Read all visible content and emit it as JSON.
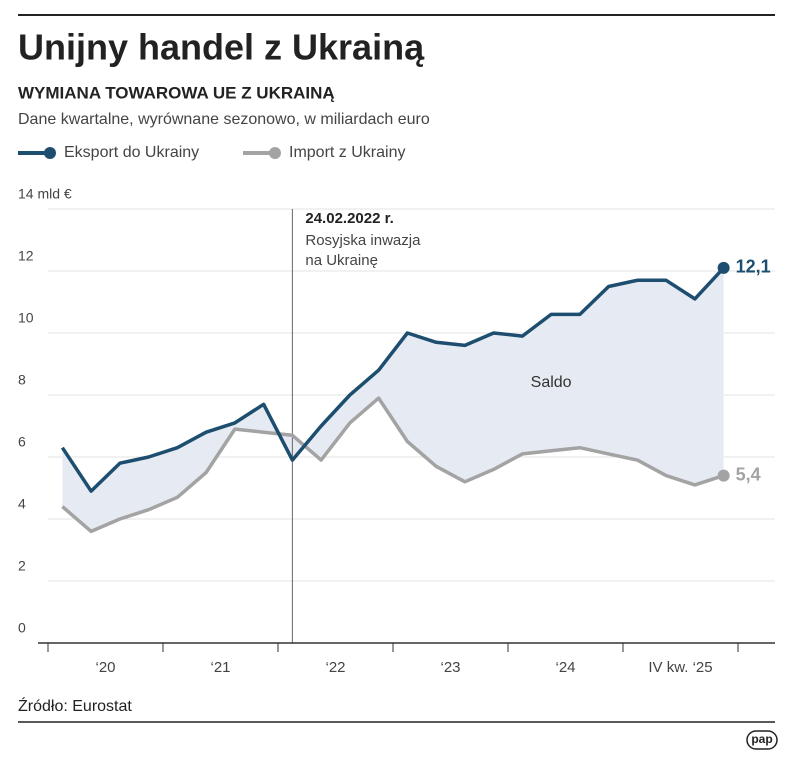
{
  "chart_data": {
    "type": "line",
    "title": "Unijny handel z Ukrainą",
    "subtitle": "WYMIANA TOWAROWA UE Z UKRAINĄ",
    "description": "Dane kwartalne, wyrównane sezonowo, w miliardach euro",
    "x": [
      2020.125,
      2020.375,
      2020.625,
      2020.875,
      2021.125,
      2021.375,
      2021.625,
      2021.875,
      2022.125,
      2022.375,
      2022.625,
      2022.875,
      2023.125,
      2023.375,
      2023.625,
      2023.875,
      2024.125,
      2024.375,
      2024.625,
      2024.875,
      2025.125,
      2025.375,
      2025.625,
      2025.875
    ],
    "series": [
      {
        "name": "Eksport do Ukrainy",
        "color": "#1d4e6f",
        "values": [
          6.3,
          4.9,
          5.8,
          6.0,
          6.3,
          6.8,
          7.1,
          7.7,
          5.9,
          7.0,
          8.0,
          8.8,
          10.0,
          9.7,
          9.6,
          10.0,
          9.9,
          10.6,
          10.6,
          11.5,
          11.7,
          11.7,
          11.1,
          12.1
        ],
        "value_labels": [
          null,
          null,
          null,
          null,
          null,
          null,
          null,
          null,
          null,
          null,
          null,
          null,
          null,
          null,
          null,
          null,
          null,
          null,
          null,
          null,
          null,
          null,
          null,
          "12,1"
        ]
      },
      {
        "name": "Import z Ukrainy",
        "color": "#a3a3a3",
        "values": [
          4.4,
          3.6,
          4.0,
          4.3,
          4.7,
          5.5,
          6.9,
          6.8,
          6.7,
          5.9,
          7.1,
          7.9,
          6.5,
          5.7,
          5.2,
          5.6,
          6.1,
          6.2,
          6.3,
          6.1,
          5.9,
          5.4,
          5.1,
          5.4
        ],
        "value_labels": [
          null,
          null,
          null,
          null,
          null,
          null,
          null,
          null,
          null,
          null,
          null,
          null,
          null,
          null,
          null,
          null,
          null,
          null,
          null,
          null,
          null,
          null,
          null,
          "5,4"
        ]
      }
    ],
    "area_color": "#e6ebf3",
    "area_label": "Saldo",
    "xlim": [
      2020,
      2026
    ],
    "xticks": [
      {
        "value": 2020.5,
        "label": "‘20"
      },
      {
        "value": 2021.5,
        "label": "‘21"
      },
      {
        "value": 2022.5,
        "label": "‘22"
      },
      {
        "value": 2023.5,
        "label": "‘23"
      },
      {
        "value": 2024.5,
        "label": "‘24"
      },
      {
        "value": 2025.5,
        "label": "IV kw. ‘25"
      }
    ],
    "ylim": [
      0,
      14
    ],
    "yticks": [
      0,
      2,
      4,
      6,
      8,
      10,
      12,
      {
        "value": 14,
        "label": "14 mld €"
      }
    ],
    "grid": true,
    "annotation": {
      "title": "24.02.2022 r.",
      "lines": [
        "Rosyjska inwazja",
        "na Ukrainę"
      ]
    },
    "source": "Źródło: Eurostat",
    "logo": "pap"
  }
}
